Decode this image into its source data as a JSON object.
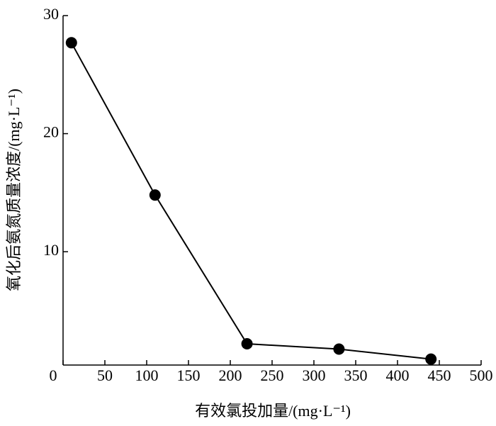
{
  "chart_data": {
    "type": "line",
    "x_label": "有效氯投加量/(mg·L⁻¹)",
    "y_label": "氧化后氨氮质量浓度/(mg·L⁻¹)",
    "x": [
      10,
      110,
      220,
      330,
      440
    ],
    "values": [
      27.7,
      14.8,
      2.2,
      1.75,
      0.9
    ],
    "color": "#000000",
    "xlim": [
      0,
      500
    ],
    "xticks": [
      0,
      50,
      100,
      150,
      200,
      250,
      300,
      350,
      400,
      450,
      500
    ],
    "ylim": [
      0.4,
      30
    ],
    "yticks": [
      10,
      20,
      30
    ]
  }
}
